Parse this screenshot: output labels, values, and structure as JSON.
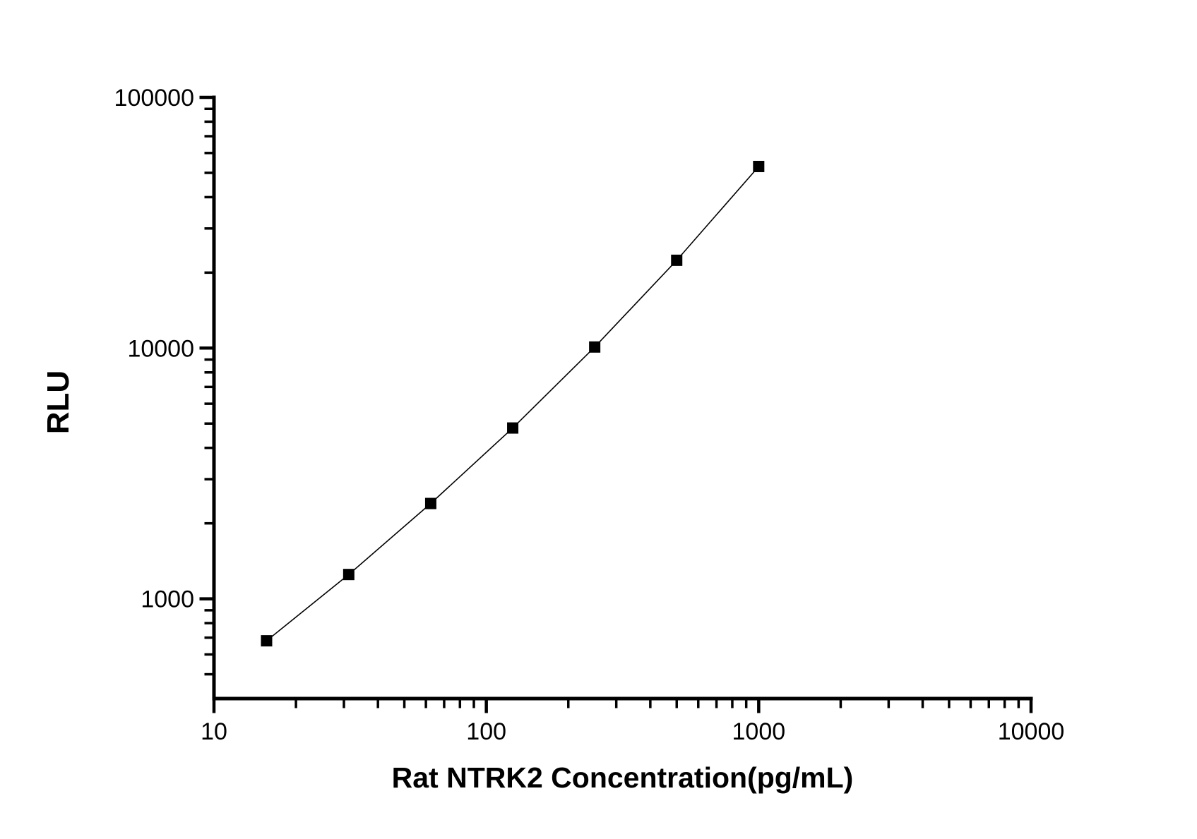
{
  "chart_data": {
    "type": "line",
    "title": "",
    "xlabel": "Rat NTRK2 Concentration(pg/mL)",
    "ylabel": "RLU",
    "x_scale": "log",
    "y_scale": "log",
    "xlim": [
      10,
      10000
    ],
    "ylim": [
      400,
      100000
    ],
    "x_major_ticks": [
      10,
      100,
      1000,
      10000
    ],
    "y_major_ticks": [
      1000,
      10000,
      100000
    ],
    "x": [
      15.6,
      31.25,
      62.5,
      125,
      250,
      500,
      1000
    ],
    "y": [
      680,
      1250,
      2400,
      4800,
      10100,
      22400,
      53000
    ],
    "marker": "filled-square",
    "legend": "none",
    "grid": "off",
    "colors": {
      "background": "#ffffff",
      "axis": "#000000",
      "text": "#000000",
      "line": "#000000",
      "marker": "#000000"
    }
  }
}
